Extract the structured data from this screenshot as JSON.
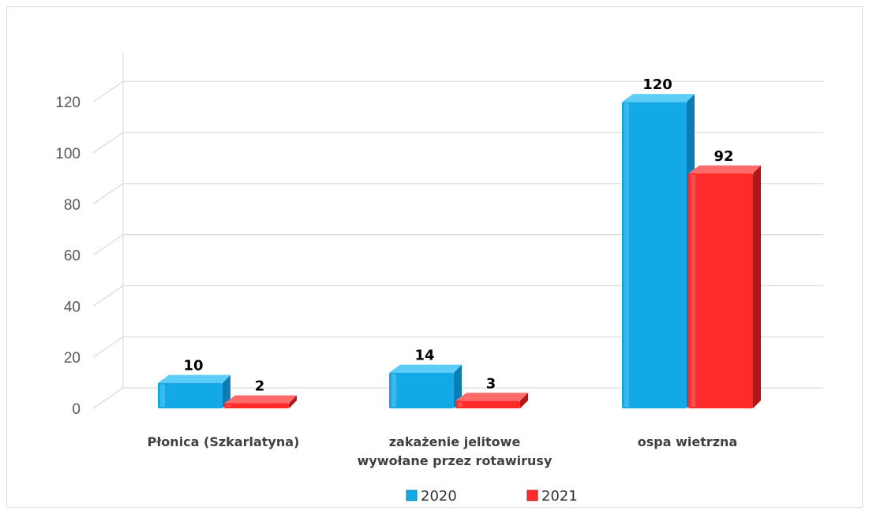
{
  "chart_data": {
    "type": "bar",
    "categories": [
      [
        "Płonica (Szkarlatyna)"
      ],
      [
        "zakażenie jelitowe",
        "wywołane przez rotawirusy"
      ],
      [
        "ospa wietrzna"
      ]
    ],
    "series": [
      {
        "name": "2020",
        "values": [
          10,
          14,
          120
        ],
        "color": "#12a9e6",
        "top_color": "#5ccdf7",
        "side_color": "#0b7db2"
      },
      {
        "name": "2021",
        "values": [
          2,
          3,
          92
        ],
        "color": "#ff2a2a",
        "top_color": "#ff6a6a",
        "side_color": "#b01818"
      }
    ],
    "yticks": [
      0,
      20,
      40,
      60,
      80,
      100,
      120
    ],
    "ylim": [
      0,
      130
    ],
    "grid": true,
    "legend_position": "bottom",
    "data_labels": true,
    "style": "3d-clustered-column"
  }
}
